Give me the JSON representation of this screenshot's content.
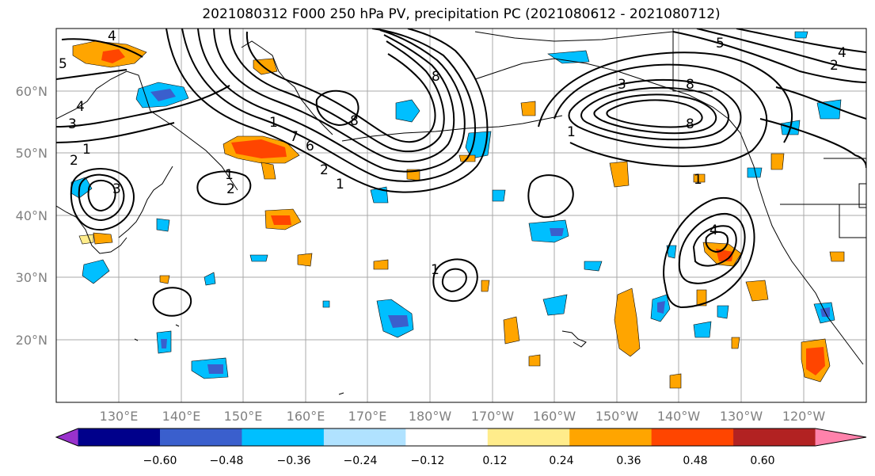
{
  "title": "2021080312 F000 250 hPa PV, precipitation PC (2021080612 - 2021080712)",
  "lat_labels": [
    "60°N",
    "50°N",
    "40°N",
    "30°N",
    "20°N"
  ],
  "lon_labels": [
    "130°E",
    "140°E",
    "150°E",
    "160°E",
    "170°E",
    "180°W",
    "170°W",
    "160°W",
    "150°W",
    "140°W",
    "130°W",
    "120°W"
  ],
  "colorbar": {
    "ticks": [
      "−0.60",
      "−0.48",
      "−0.36",
      "−0.24",
      "−0.12",
      "0.12",
      "0.24",
      "0.36",
      "0.48",
      "0.60"
    ],
    "colors": [
      "#9932cc",
      "#00008b",
      "#3a5fcd",
      "#00bfff",
      "#b0e2ff",
      "#ffffff",
      "#ffec8b",
      "#ffa500",
      "#ff4500",
      "#b22222",
      "#ff82ab"
    ]
  },
  "contour_labels": [
    "4",
    "5",
    "4",
    "3",
    "1",
    "2",
    "3",
    "1",
    "2",
    "1",
    "8",
    "8",
    "7",
    "6",
    "2",
    "1",
    "8",
    "3",
    "8",
    "1",
    "1",
    "5",
    "4",
    "2",
    "4",
    "1"
  ]
}
